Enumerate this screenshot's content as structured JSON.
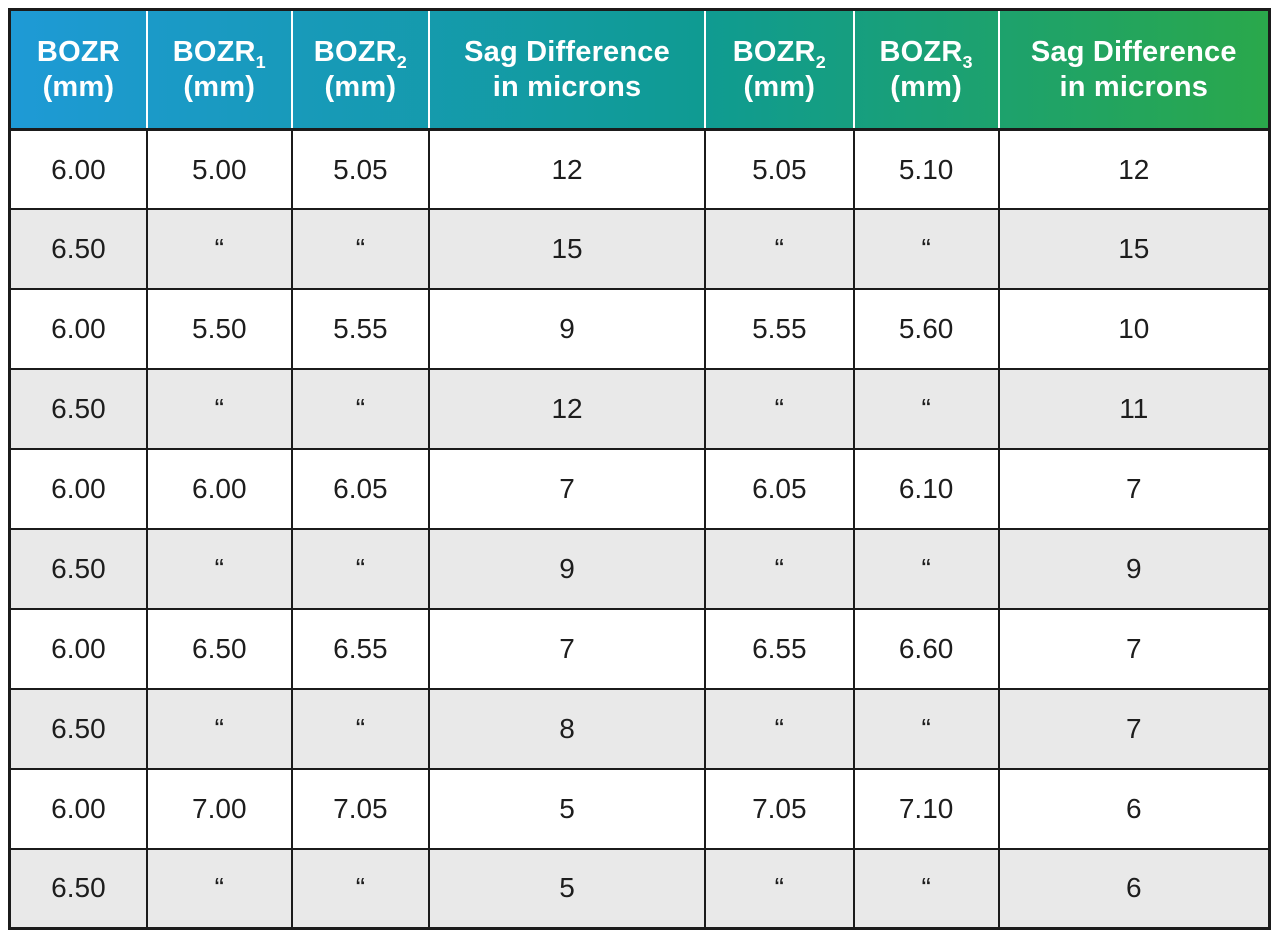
{
  "chart_data": {
    "type": "table",
    "columns": [
      {
        "label": "BOZR",
        "sub": "",
        "unit": "(mm)"
      },
      {
        "label": "BOZR",
        "sub": "1",
        "unit": "(mm)"
      },
      {
        "label": "BOZR",
        "sub": "2",
        "unit": "(mm)"
      },
      {
        "label": "Sag Difference",
        "sub": "",
        "unit": "in microns"
      },
      {
        "label": "BOZR",
        "sub": "2",
        "unit": "(mm)"
      },
      {
        "label": "BOZR",
        "sub": "3",
        "unit": "(mm)"
      },
      {
        "label": "Sag Difference",
        "sub": "",
        "unit": "in microns"
      }
    ],
    "rows": [
      [
        "6.00",
        "5.00",
        "5.05",
        "12",
        "5.05",
        "5.10",
        "12"
      ],
      [
        "6.50",
        "“",
        "“",
        "15",
        "“",
        "“",
        "15"
      ],
      [
        "6.00",
        "5.50",
        "5.55",
        "9",
        "5.55",
        "5.60",
        "10"
      ],
      [
        "6.50",
        "“",
        "“",
        "12",
        "“",
        "“",
        "11"
      ],
      [
        "6.00",
        "6.00",
        "6.05",
        "7",
        "6.05",
        "6.10",
        "7"
      ],
      [
        "6.50",
        "“",
        "“",
        "9",
        "“",
        "“",
        "9"
      ],
      [
        "6.00",
        "6.50",
        "6.55",
        "7",
        "6.55",
        "6.60",
        "7"
      ],
      [
        "6.50",
        "“",
        "“",
        "8",
        "“",
        "“",
        "7"
      ],
      [
        "6.00",
        "7.00",
        "7.05",
        "5",
        "7.05",
        "7.10",
        "6"
      ],
      [
        "6.50",
        "“",
        "“",
        "5",
        "“",
        "“",
        "6"
      ]
    ],
    "colors": {
      "header_gradient_start": "#1E9AD6",
      "header_gradient_mid": "#0F9B92",
      "header_gradient_end": "#2AA84B",
      "row_white": "#FFFFFF",
      "row_alt": "#E9E9E9",
      "border": "#1B1B1B",
      "header_text": "#FFFFFF"
    },
    "layout_hints": {
      "grid": "on",
      "alternating_rows": true,
      "header_separator_color": "white"
    }
  }
}
